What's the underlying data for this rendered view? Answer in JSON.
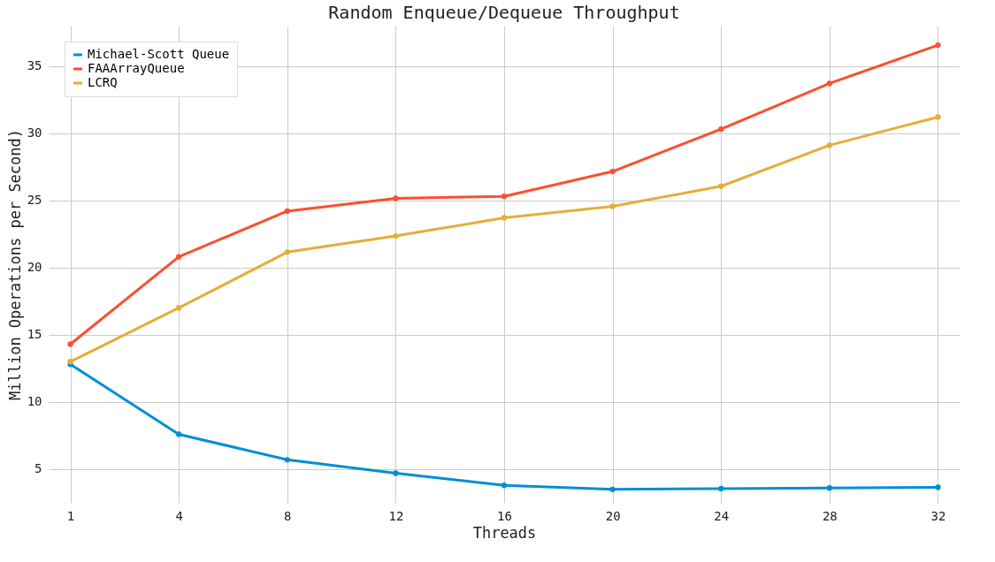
{
  "chart_data": {
    "type": "line",
    "title": "Random Enqueue/Dequeue Throughput",
    "xlabel": "Threads",
    "ylabel": "Million Operations per Second)",
    "categories": [
      "1",
      "4",
      "8",
      "12",
      "16",
      "20",
      "24",
      "28",
      "32"
    ],
    "series": [
      {
        "name": "Michael-Scott Queue",
        "color": "#008fd5",
        "values": [
          12.8,
          7.6,
          5.7,
          4.7,
          3.8,
          3.5,
          3.55,
          3.6,
          3.65
        ]
      },
      {
        "name": "FAAArrayQueue",
        "color": "#fc4f30",
        "values": [
          14.3,
          20.8,
          24.2,
          25.15,
          25.3,
          27.15,
          30.3,
          33.7,
          36.55
        ]
      },
      {
        "name": "LCRQ",
        "color": "#e5ae38",
        "values": [
          13.0,
          17.0,
          21.15,
          22.35,
          23.7,
          24.55,
          26.05,
          29.1,
          31.2
        ]
      }
    ],
    "ylim": [
      2.5,
      38
    ],
    "yticks": [
      5,
      10,
      15,
      20,
      25,
      30,
      35
    ],
    "grid": true,
    "legend": "top left",
    "marker": "circle",
    "line_style": "solid"
  }
}
